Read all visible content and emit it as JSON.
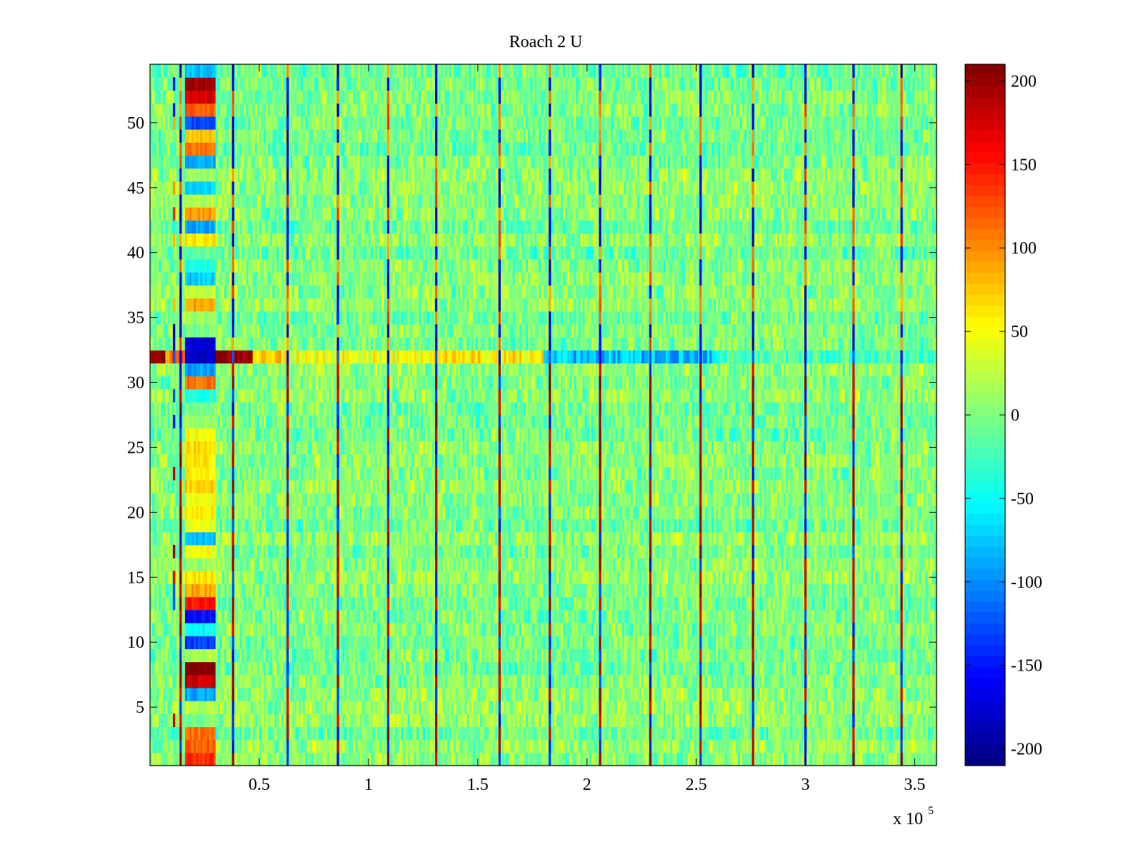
{
  "chart_data": {
    "type": "heatmap",
    "title": "Roach 2 U",
    "xlabel": "",
    "ylabel": "",
    "x_multiplier_label": {
      "base": "x 10",
      "exponent": "5"
    },
    "xlim": [
      0,
      3.6
    ],
    "ylim": [
      0.5,
      54.5
    ],
    "x_ticks": [
      0.5,
      1,
      1.5,
      2,
      2.5,
      3,
      3.5
    ],
    "x_tick_labels": [
      "0.5",
      "1",
      "1.5",
      "2",
      "2.5",
      "3",
      "3.5"
    ],
    "y_ticks": [
      5,
      10,
      15,
      20,
      25,
      30,
      35,
      40,
      45,
      50
    ],
    "y_tick_labels": [
      "5",
      "10",
      "15",
      "20",
      "25",
      "30",
      "35",
      "40",
      "45",
      "50"
    ],
    "rows": 54,
    "colormap": "jet",
    "colorbar": {
      "range": [
        -210,
        210
      ],
      "ticks": [
        -200,
        -150,
        -100,
        -50,
        0,
        50,
        100,
        150,
        200
      ],
      "tick_labels": [
        "-200",
        "-150",
        "-100",
        "-50",
        "0",
        "50",
        "100",
        "150",
        "200"
      ]
    },
    "background_level": 0,
    "noise_amplitude": 40,
    "stripe_x_positions": [
      0.11,
      0.14,
      0.38,
      0.63,
      0.86,
      1.09,
      1.31,
      1.6,
      1.83,
      2.06,
      2.29,
      2.52,
      2.76,
      3.0,
      3.22,
      3.44
    ],
    "hot_block": {
      "x_range": [
        0.16,
        0.3
      ],
      "row_values": {
        "1": 140,
        "2": 120,
        "3": 110,
        "4": 0,
        "5": 20,
        "6": -90,
        "7": 180,
        "8": 210,
        "9": 20,
        "10": -130,
        "11": -50,
        "12": -150,
        "13": 150,
        "14": 90,
        "15": 60,
        "16": 10,
        "17": 50,
        "18": -80,
        "19": 40,
        "20": 60,
        "21": 50,
        "22": 70,
        "23": 60,
        "24": 60,
        "25": 70,
        "26": 50,
        "27": 10,
        "28": 0,
        "29": -40,
        "30": 110,
        "31": -90,
        "32": -180,
        "33": -170,
        "34": 0,
        "35": 10,
        "36": 90,
        "37": 30,
        "38": -70,
        "39": -40,
        "40": -10,
        "41": 60,
        "42": -90,
        "43": 90,
        "44": 20,
        "45": -70,
        "46": 10,
        "47": -90,
        "48": 110,
        "49": 80,
        "50": -130,
        "51": 120,
        "52": 170,
        "53": 200,
        "54": -80
      }
    },
    "anomaly_row": {
      "row": 32,
      "segments": [
        {
          "x_range": [
            0.0,
            0.07
          ],
          "value": 190
        },
        {
          "x_range": [
            0.07,
            0.16
          ],
          "value": 110
        },
        {
          "x_range": [
            0.3,
            0.47
          ],
          "value": 205
        },
        {
          "x_range": [
            0.47,
            0.6
          ],
          "value": 80
        },
        {
          "x_range": [
            0.6,
            1.2
          ],
          "value": 45
        },
        {
          "x_range": [
            1.2,
            1.8
          ],
          "value": 60
        },
        {
          "x_range": [
            1.8,
            2.6
          ],
          "value": -80
        },
        {
          "x_range": [
            2.6,
            3.6
          ],
          "value": -20
        }
      ]
    }
  }
}
